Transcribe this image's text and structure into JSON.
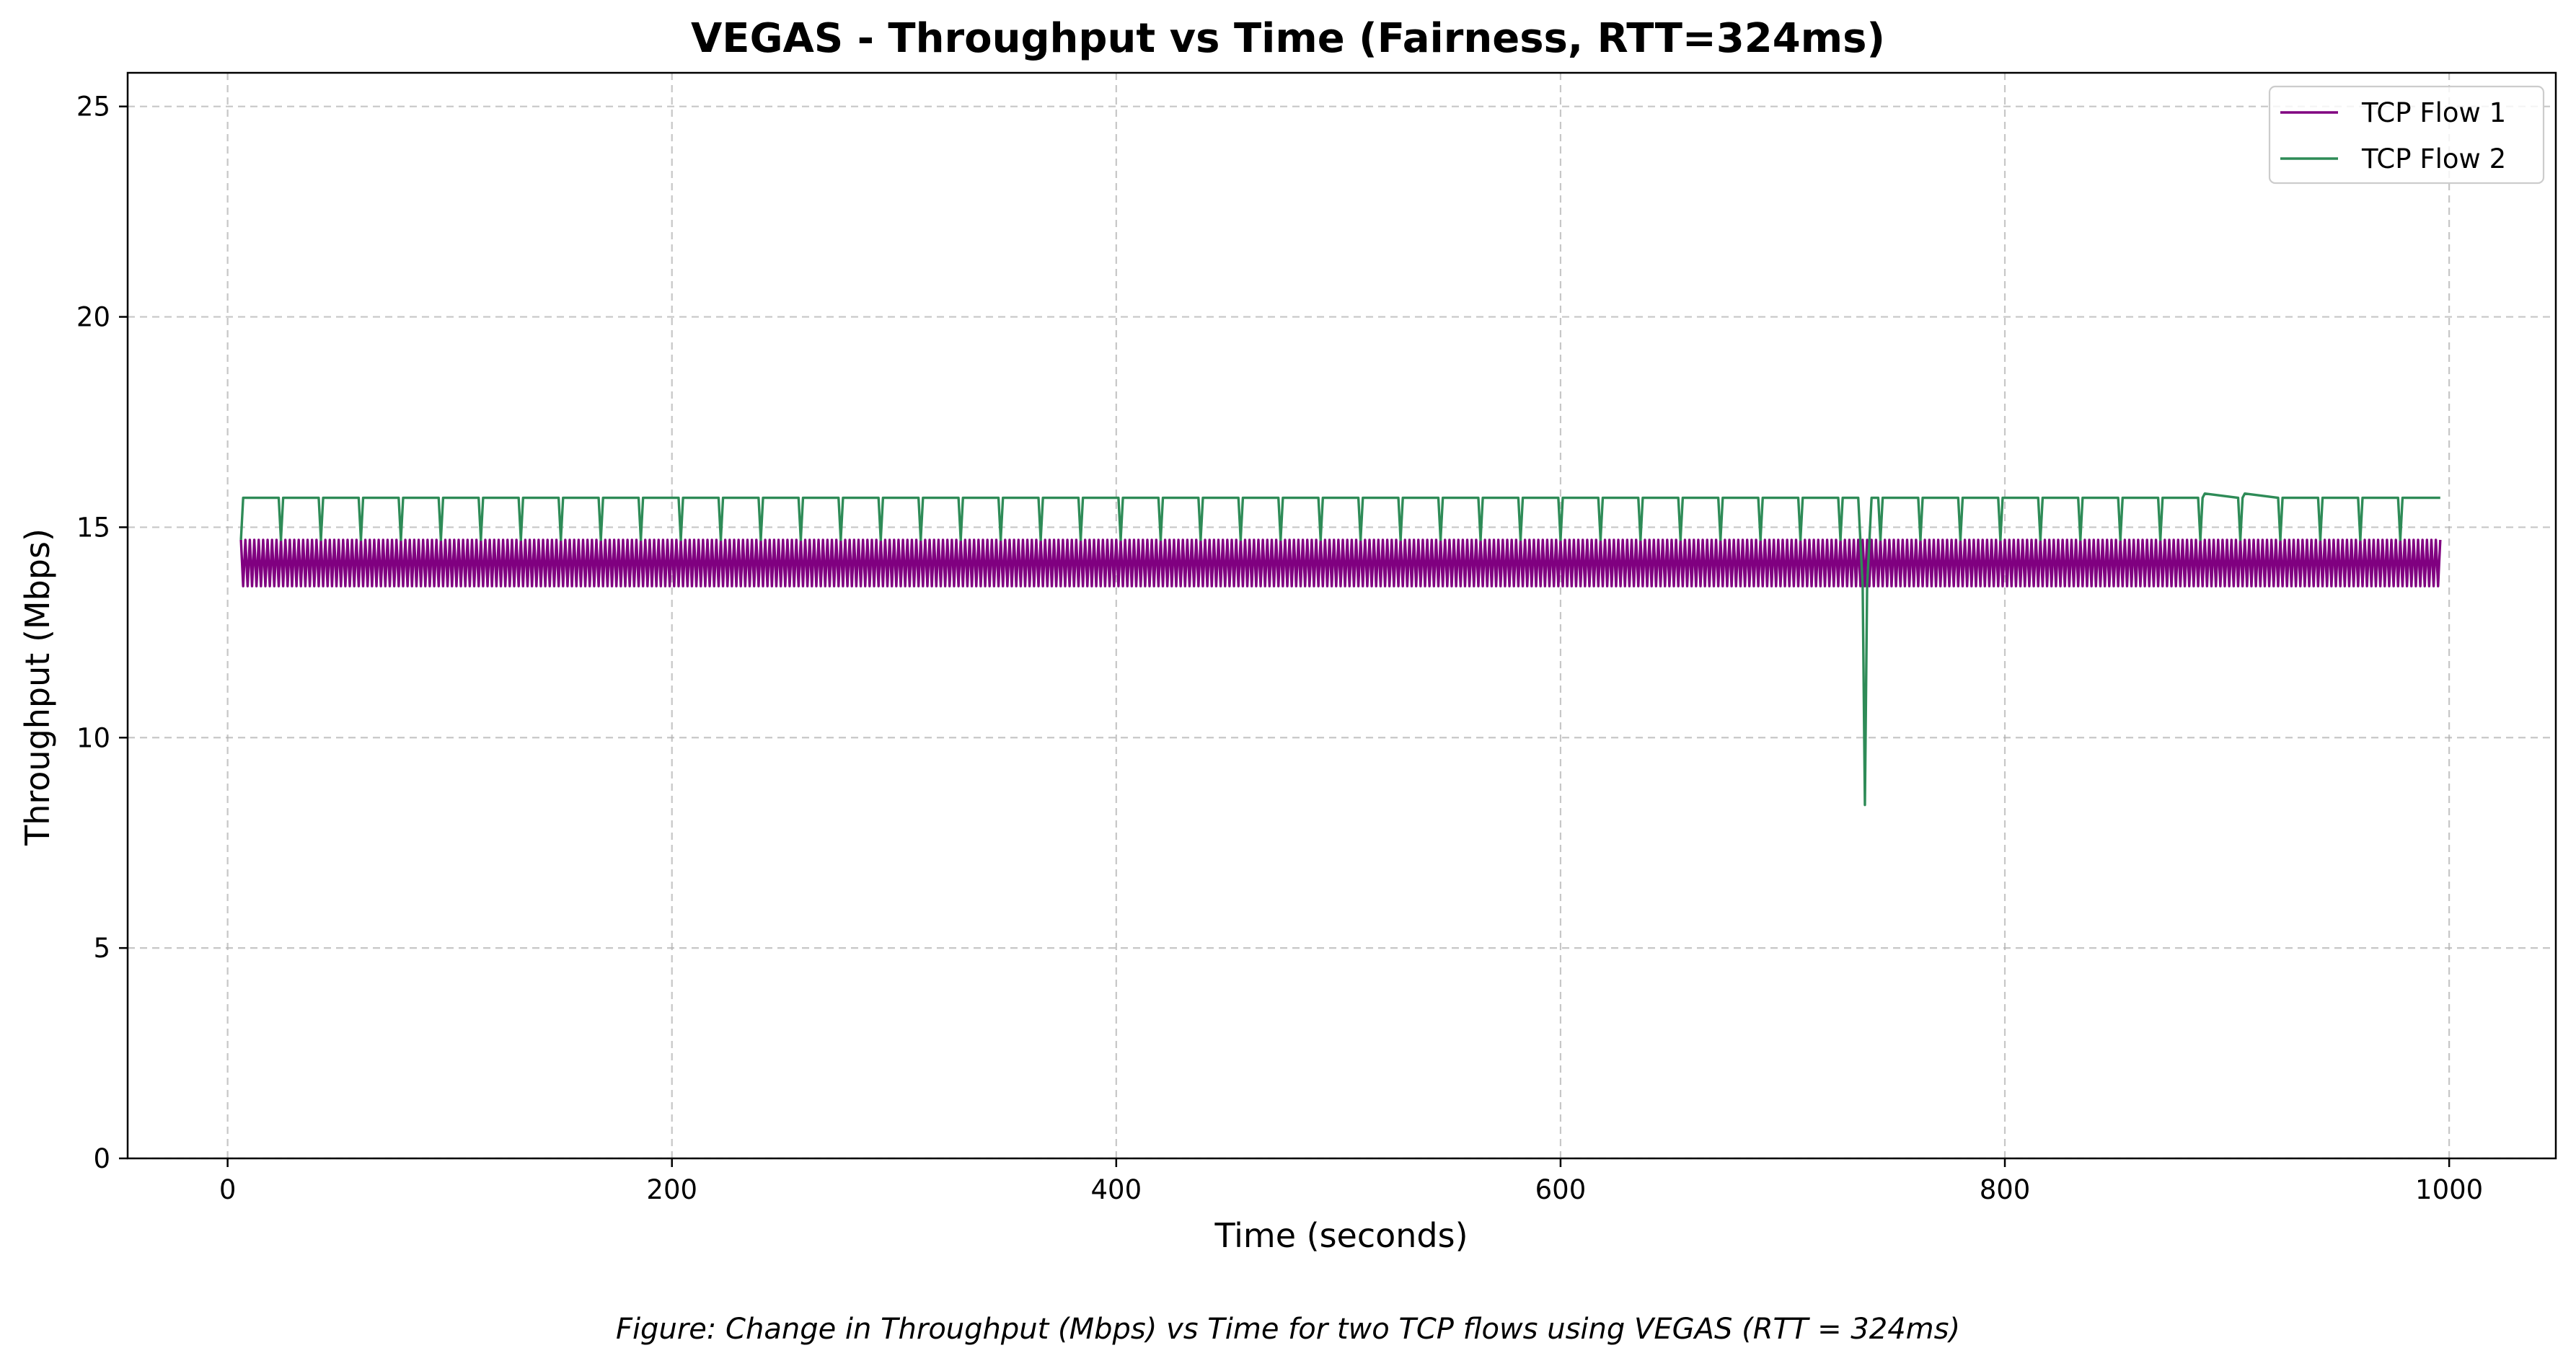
{
  "chart_data": {
    "type": "line",
    "title": "VEGAS - Throughput vs Time (Fairness, RTT=324ms)",
    "xlabel": "Time (seconds)",
    "ylabel": "Throughput (Mbps)",
    "caption": "Figure: Change in Throughput (Mbps) vs Time for two TCP flows using VEGAS (RTT = 324ms)",
    "xlim": [
      -45,
      1048
    ],
    "ylim": [
      0,
      25.8
    ],
    "xticks": [
      0,
      200,
      400,
      600,
      800,
      1000
    ],
    "yticks": [
      0,
      5,
      10,
      15,
      20,
      25
    ],
    "grid": true,
    "legend_position": "top-right",
    "series": [
      {
        "name": "TCP Flow 1",
        "color": "#800080",
        "pattern": "Oscillates between approximately 13.6 and 14.7 Mbps every ~2 seconds from t=6s to t=996s",
        "x_range": [
          6,
          996
        ],
        "y_low": 13.6,
        "y_high": 14.7,
        "period": 2.0
      },
      {
        "name": "TCP Flow 2",
        "color": "#2e8b57",
        "pattern": "Mostly flat at ~15.7 Mbps with periodic dips to ~14.7 Mbps every ~18 seconds; sharp drop to ~8.4 Mbps near t=737s",
        "x_range": [
          6,
          996
        ],
        "y_base": 15.7,
        "y_dip": 14.7,
        "dip_period": 18,
        "dip_start": 24,
        "notable_points": [
          {
            "x": 6,
            "y": 14.7
          },
          {
            "x": 7,
            "y": 15.7
          },
          {
            "x": 734,
            "y": 15.7
          },
          {
            "x": 736,
            "y": 13.6
          },
          {
            "x": 737,
            "y": 8.4
          },
          {
            "x": 738,
            "y": 13.6
          },
          {
            "x": 740,
            "y": 15.7
          },
          {
            "x": 890,
            "y": 15.8
          },
          {
            "x": 908,
            "y": 15.8
          }
        ]
      }
    ]
  }
}
